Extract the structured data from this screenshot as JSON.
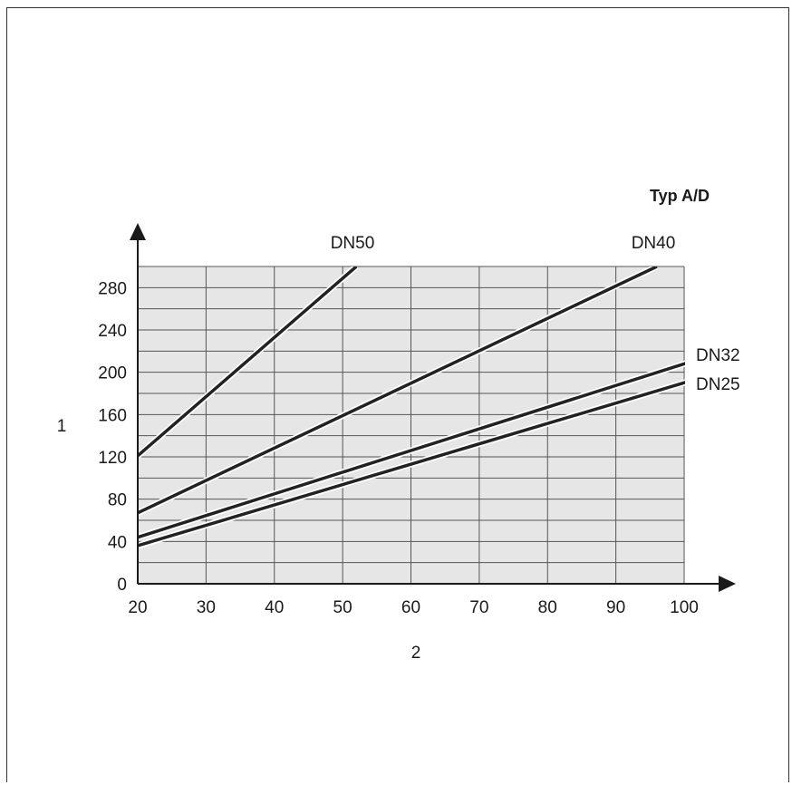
{
  "chart_data": {
    "type": "line",
    "title": "Typ A/D",
    "xlabel": "2",
    "ylabel": "1",
    "xlim": [
      20,
      100
    ],
    "ylim": [
      0,
      300
    ],
    "grid": true,
    "x_ticks": [
      "20",
      "30",
      "40",
      "50",
      "60",
      "70",
      "80",
      "90",
      "100"
    ],
    "y_ticks": [
      "0",
      "40",
      "80",
      "120",
      "160",
      "200",
      "240",
      "280"
    ],
    "series": [
      {
        "name": "DN50",
        "x": [
          20,
          52
        ],
        "y": [
          121,
          300
        ]
      },
      {
        "name": "DN40",
        "x": [
          20,
          96
        ],
        "y": [
          67,
          300
        ]
      },
      {
        "name": "DN32",
        "x": [
          20,
          101
        ],
        "y": [
          44,
          210
        ]
      },
      {
        "name": "DN25",
        "x": [
          20,
          101
        ],
        "y": [
          36,
          192
        ]
      }
    ]
  }
}
